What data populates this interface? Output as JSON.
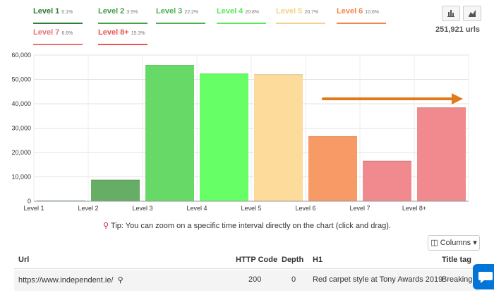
{
  "legend": [
    {
      "label": "Level 1",
      "pct": "0.1%",
      "color": "#2e7d32"
    },
    {
      "label": "Level 2",
      "pct": "3.5%",
      "color": "#43a047"
    },
    {
      "label": "Level 3",
      "pct": "22.2%",
      "color": "#4caf50"
    },
    {
      "label": "Level 4",
      "pct": "20.8%",
      "color": "#5ce65c"
    },
    {
      "label": "Level 5",
      "pct": "20.7%",
      "color": "#f5d08a"
    },
    {
      "label": "Level 6",
      "pct": "10.6%",
      "color": "#f5834a"
    },
    {
      "label": "Level 7",
      "pct": "6.6%",
      "color": "#e57373"
    },
    {
      "label": "Level 8+",
      "pct": "15.3%",
      "color": "#ef5350"
    }
  ],
  "url_count": "251,921 urls",
  "tip": "Tip: You can zoom on a specific time interval directly on the chart (click and drag).",
  "columns_button": "Columns",
  "table": {
    "headers": [
      "Url",
      "HTTP Code",
      "Depth",
      "H1",
      "Title tag"
    ],
    "rows": [
      [
        "https://www.independent.ie/",
        "200",
        "0",
        "Red carpet style at Tony Awards 2019",
        "Breaking"
      ]
    ]
  },
  "chart_data": {
    "type": "bar",
    "categories": [
      "Level 1",
      "Level 2",
      "Level 3",
      "Level 4",
      "Level 5",
      "Level 6",
      "Level 7",
      "Level 8+"
    ],
    "values": [
      250,
      8800,
      55900,
      52400,
      52100,
      26700,
      16600,
      38500
    ],
    "colors": [
      "#4caf50",
      "#66ad66",
      "#66d966",
      "#66ff66",
      "#fddb9b",
      "#f79a66",
      "#f08a8e",
      "#f08a8e"
    ],
    "ylim": [
      0,
      60000
    ],
    "yticks": [
      "0",
      "10,000",
      "20,000",
      "30,000",
      "40,000",
      "50,000",
      "60,000"
    ],
    "grid": true,
    "annotation": "orange arrow pointing right"
  }
}
